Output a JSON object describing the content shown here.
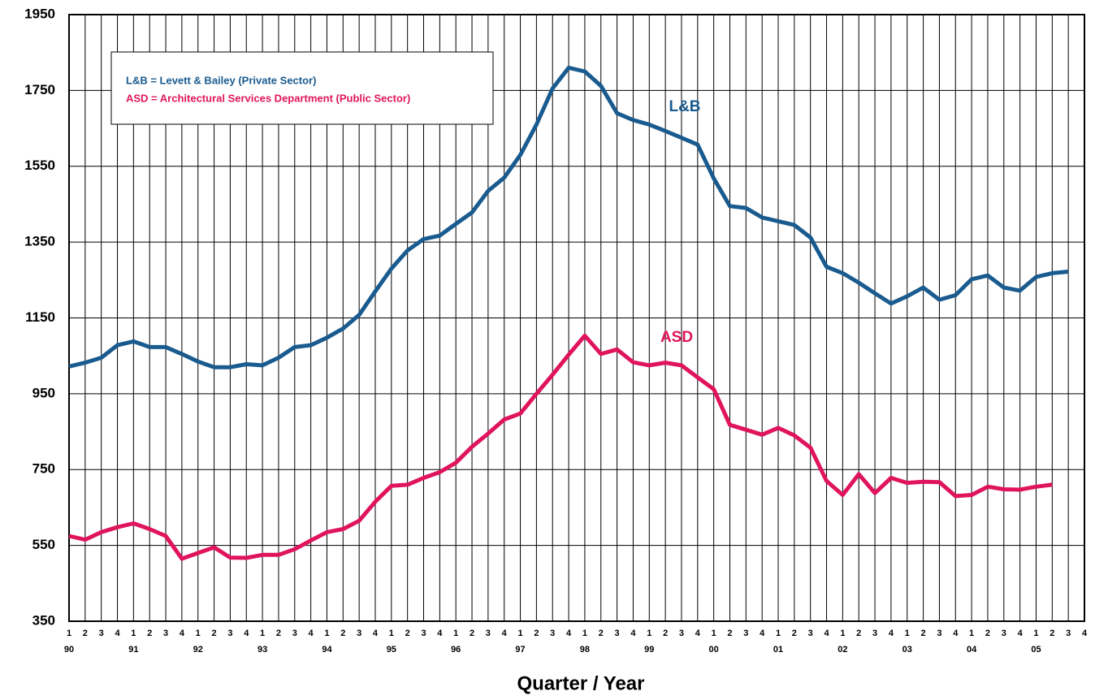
{
  "chart_data": {
    "type": "line",
    "x_label": "Quarter / Year",
    "categories": [
      "1",
      "2",
      "3",
      "4",
      "1",
      "2",
      "3",
      "4",
      "1",
      "2",
      "3",
      "4",
      "1",
      "2",
      "3",
      "4",
      "1",
      "2",
      "3",
      "4",
      "1",
      "2",
      "3",
      "4",
      "1",
      "2",
      "3",
      "4",
      "1",
      "2",
      "3",
      "4",
      "1",
      "2",
      "3",
      "4",
      "1",
      "2",
      "3",
      "4",
      "1",
      "2",
      "3",
      "4",
      "1",
      "2",
      "3",
      "4",
      "1",
      "2",
      "3",
      "4",
      "1",
      "2",
      "3",
      "4",
      "1",
      "2",
      "3",
      "4",
      "1",
      "2",
      "3",
      "4"
    ],
    "category_groups": [
      "90",
      "91",
      "92",
      "93",
      "94",
      "95",
      "96",
      "97",
      "98",
      "99",
      "00",
      "01",
      "02",
      "03",
      "04",
      "05"
    ],
    "legend_entries": [
      "L&B = Levett & Bailey (Private Sector)",
      "ASD = Architectural Services Department (Public Sector)"
    ],
    "series": [
      {
        "name": "L&B",
        "color": "#1a5b8f",
        "values": [
          1022,
          1032,
          1045,
          1078,
          1088,
          1073,
          1073,
          1055,
          1035,
          1020,
          1020,
          1028,
          1025,
          1045,
          1073,
          1078,
          1098,
          1122,
          1158,
          1220,
          1280,
          1328,
          1358,
          1367,
          1398,
          1428,
          1485,
          1520,
          1580,
          1660,
          1755,
          1810,
          1800,
          1762,
          1690,
          1672,
          1660,
          1643,
          1625,
          1607,
          1518,
          1445,
          1440,
          1415,
          1405,
          1395,
          1362,
          1285,
          1268,
          1243,
          1215,
          1188,
          1207,
          1230,
          1198,
          1210,
          1252,
          1262,
          1230,
          1222,
          1258,
          1268,
          1272,
          null
        ]
      },
      {
        "name": "ASD",
        "color": "#e0145c",
        "values": [
          575,
          565,
          585,
          598,
          608,
          593,
          575,
          515,
          530,
          545,
          518,
          517,
          525,
          525,
          540,
          563,
          585,
          593,
          615,
          665,
          707,
          710,
          728,
          743,
          768,
          810,
          845,
          882,
          898,
          950,
          1000,
          1053,
          1103,
          1055,
          1067,
          1033,
          1025,
          1032,
          1025,
          993,
          962,
          868,
          855,
          842,
          860,
          840,
          808,
          720,
          683,
          738,
          688,
          728,
          715,
          718,
          717,
          680,
          683,
          705,
          698,
          697,
          705,
          710,
          null,
          null
        ]
      }
    ],
    "ylim": [
      350,
      1950
    ],
    "yticks": [
      350,
      550,
      750,
      950,
      1150,
      1350,
      1550,
      1750,
      1950
    ],
    "grid": true
  }
}
